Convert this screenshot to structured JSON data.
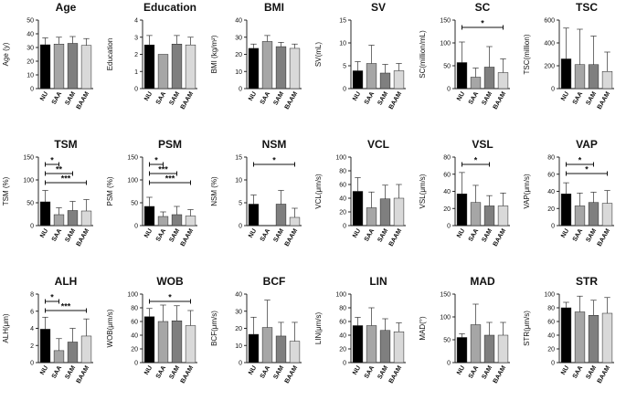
{
  "categories": [
    "NU",
    "SAA",
    "SAM",
    "BAAM"
  ],
  "colors": [
    "#000000",
    "#a6a6a6",
    "#7f7f7f",
    "#d9d9d9"
  ],
  "chart_data": [
    {
      "type": "bar",
      "title": "Age",
      "ylabel": "Age (y)",
      "ylim": [
        0,
        50
      ],
      "ticks": [
        0,
        10,
        20,
        30,
        40,
        50
      ],
      "values": [
        32,
        32.5,
        33,
        31.5
      ],
      "errors": [
        5,
        5,
        5,
        5
      ],
      "sig": []
    },
    {
      "type": "bar",
      "title": "Education",
      "ylabel": "Education",
      "ylim": [
        0,
        4
      ],
      "ticks": [
        0,
        1,
        2,
        3,
        4
      ],
      "values": [
        2.55,
        2,
        2.6,
        2.55
      ],
      "errors": [
        0.55,
        0,
        0.5,
        0.45
      ],
      "sig": []
    },
    {
      "type": "bar",
      "title": "BMI",
      "ylabel": "BMI (kg/m²)",
      "ylim": [
        0,
        40
      ],
      "ticks": [
        0,
        10,
        20,
        30,
        40
      ],
      "values": [
        23.5,
        27.5,
        24.5,
        23.5
      ],
      "errors": [
        2.5,
        3.5,
        2.5,
        2.5
      ],
      "sig": []
    },
    {
      "type": "bar",
      "title": "SV",
      "ylabel": "SV(mL)",
      "ylim": [
        0,
        15
      ],
      "ticks": [
        0,
        5,
        10,
        15
      ],
      "values": [
        3.9,
        5.5,
        3.4,
        3.9
      ],
      "errors": [
        2,
        4,
        1.9,
        1.6
      ],
      "sig": []
    },
    {
      "type": "bar",
      "title": "SC",
      "ylabel": "SC(million/mL)",
      "ylim": [
        0,
        150
      ],
      "ticks": [
        0,
        50,
        100,
        150
      ],
      "values": [
        57,
        25,
        47,
        35
      ],
      "errors": [
        45,
        20,
        45,
        30
      ],
      "sig": [
        {
          "from": 0,
          "to": 3,
          "label": "*",
          "level": 0
        }
      ]
    },
    {
      "type": "bar",
      "title": "TSC",
      "ylabel": "TSC(million)",
      "ylim": [
        0,
        600
      ],
      "ticks": [
        0,
        200,
        400,
        600
      ],
      "values": [
        260,
        210,
        210,
        150
      ],
      "errors": [
        270,
        310,
        250,
        170
      ],
      "sig": []
    },
    {
      "type": "bar",
      "title": "TSM",
      "ylabel": "TSM (%)",
      "ylim": [
        0,
        150
      ],
      "ticks": [
        0,
        50,
        100,
        150
      ],
      "values": [
        52,
        24,
        33,
        32
      ],
      "errors": [
        25,
        15,
        20,
        25
      ],
      "sig": [
        {
          "from": 0,
          "to": 1,
          "label": "*",
          "level": 0
        },
        {
          "from": 0,
          "to": 2,
          "label": "**",
          "level": 1
        },
        {
          "from": 0,
          "to": 3,
          "label": "***",
          "level": 2
        }
      ]
    },
    {
      "type": "bar",
      "title": "PSM",
      "ylabel": "PSM (%)",
      "ylim": [
        0,
        150
      ],
      "ticks": [
        0,
        50,
        100,
        150
      ],
      "values": [
        42,
        20,
        24,
        21
      ],
      "errors": [
        20,
        10,
        18,
        14
      ],
      "sig": [
        {
          "from": 0,
          "to": 1,
          "label": "*",
          "level": 0
        },
        {
          "from": 0,
          "to": 2,
          "label": "***",
          "level": 1
        },
        {
          "from": 0,
          "to": 3,
          "label": "***",
          "level": 2
        }
      ]
    },
    {
      "type": "bar",
      "title": "NSM",
      "ylabel": "NSM (%)",
      "ylim": [
        0,
        15
      ],
      "ticks": [
        0,
        5,
        10,
        15
      ],
      "values": [
        4.7,
        0,
        4.7,
        1.8
      ],
      "errors": [
        2,
        0,
        3,
        2
      ],
      "sig": [
        {
          "from": 0,
          "to": 3,
          "label": "*",
          "level": 0
        }
      ]
    },
    {
      "type": "bar",
      "title": "VCL",
      "ylabel": "VCL(μm/s)",
      "ylim": [
        0,
        100
      ],
      "ticks": [
        0,
        20,
        40,
        60,
        80,
        100
      ],
      "values": [
        50,
        26,
        39,
        40
      ],
      "errors": [
        20,
        23,
        20,
        20
      ],
      "sig": []
    },
    {
      "type": "bar",
      "title": "VSL",
      "ylabel": "VSL(μm/s)",
      "ylim": [
        0,
        80
      ],
      "ticks": [
        0,
        20,
        40,
        60,
        80
      ],
      "values": [
        37,
        27,
        23,
        23
      ],
      "errors": [
        25,
        20,
        12,
        15
      ],
      "sig": [
        {
          "from": 0,
          "to": 2,
          "label": "*",
          "level": 0
        }
      ]
    },
    {
      "type": "bar",
      "title": "VAP",
      "ylabel": "VAP(μm/s)",
      "ylim": [
        0,
        80
      ],
      "ticks": [
        0,
        20,
        40,
        60,
        80
      ],
      "values": [
        37,
        23,
        27,
        26
      ],
      "errors": [
        13,
        15,
        12,
        15
      ],
      "sig": [
        {
          "from": 0,
          "to": 2,
          "label": "*",
          "level": 0
        },
        {
          "from": 0,
          "to": 3,
          "label": "*",
          "level": 1
        }
      ]
    },
    {
      "type": "bar",
      "title": "ALH",
      "ylabel": "ALH(μm)",
      "ylim": [
        0,
        8
      ],
      "ticks": [
        0,
        2,
        4,
        6,
        8
      ],
      "values": [
        3.9,
        1.4,
        2.4,
        3.1
      ],
      "errors": [
        1.4,
        1.4,
        1.6,
        2
      ],
      "sig": [
        {
          "from": 0,
          "to": 1,
          "label": "*",
          "level": 0
        },
        {
          "from": 0,
          "to": 3,
          "label": "***",
          "level": 1
        }
      ]
    },
    {
      "type": "bar",
      "title": "WOB",
      "ylabel": "WOB(μm/s)",
      "ylim": [
        0,
        100
      ],
      "ticks": [
        0,
        20,
        40,
        60,
        80,
        100
      ],
      "values": [
        67,
        60,
        61,
        54
      ],
      "errors": [
        12,
        24,
        22,
        22
      ],
      "sig": [
        {
          "from": 0,
          "to": 3,
          "label": "*",
          "level": 0
        }
      ]
    },
    {
      "type": "bar",
      "title": "BCF",
      "ylabel": "BCF(μm/s)",
      "ylim": [
        0,
        40
      ],
      "ticks": [
        0,
        10,
        20,
        30,
        40
      ],
      "values": [
        16.5,
        20.5,
        15.5,
        12.5
      ],
      "errors": [
        10,
        16,
        8,
        11
      ],
      "sig": []
    },
    {
      "type": "bar",
      "title": "LIN",
      "ylabel": "LIN(μm/s)",
      "ylim": [
        0,
        100
      ],
      "ticks": [
        0,
        20,
        40,
        60,
        80,
        100
      ],
      "values": [
        54,
        54,
        47,
        45
      ],
      "errors": [
        12,
        26,
        17,
        13
      ],
      "sig": []
    },
    {
      "type": "bar",
      "title": "MAD",
      "ylabel": "MAD(°)",
      "ylim": [
        0,
        150
      ],
      "ticks": [
        0,
        50,
        100,
        150
      ],
      "values": [
        55,
        83,
        60,
        60
      ],
      "errors": [
        8,
        45,
        28,
        28
      ],
      "sig": []
    },
    {
      "type": "bar",
      "title": "STR",
      "ylabel": "STR(μm/s)",
      "ylim": [
        0,
        100
      ],
      "ticks": [
        0,
        20,
        40,
        60,
        80,
        100
      ],
      "values": [
        80,
        74,
        69,
        72
      ],
      "errors": [
        8,
        23,
        22,
        23
      ],
      "sig": []
    }
  ]
}
